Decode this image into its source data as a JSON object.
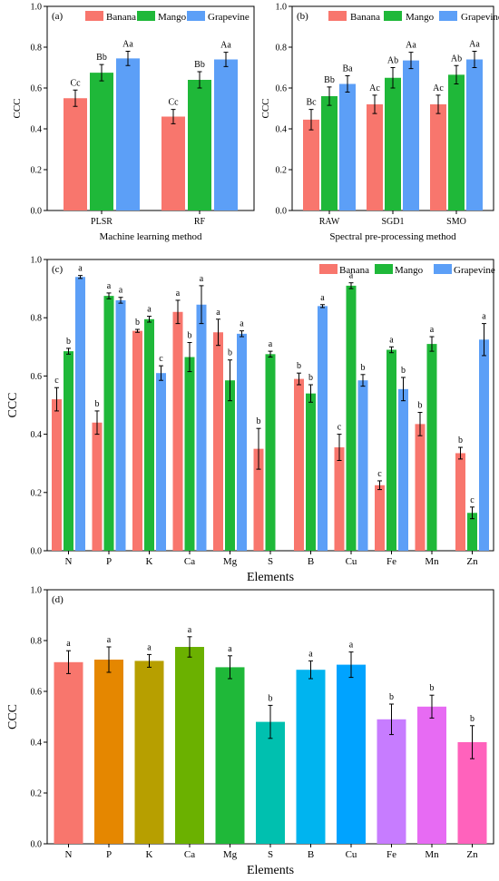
{
  "colors": {
    "Banana": "#f8766d",
    "Mango": "#1fb839",
    "Grapevine": "#5c9ff7"
  },
  "chart_data": [
    {
      "panel": "(a)",
      "type": "bar",
      "ylabel": "CCC",
      "xlabel": "Machine learning method",
      "ylim": [
        0,
        1
      ],
      "yticks": [
        "0.0",
        "0.2",
        "0.4",
        "0.6",
        "0.8",
        "1.0"
      ],
      "legend": "top",
      "categories": [
        "PLSR",
        "RF"
      ],
      "series": [
        {
          "name": "Banana",
          "values": [
            0.55,
            0.46
          ],
          "err": [
            0.04,
            0.035
          ],
          "labels": [
            "Cc",
            "Cc"
          ]
        },
        {
          "name": "Mango",
          "values": [
            0.675,
            0.64
          ],
          "err": [
            0.04,
            0.04
          ],
          "labels": [
            "Bb",
            "Bb"
          ]
        },
        {
          "name": "Grapevine",
          "values": [
            0.745,
            0.74
          ],
          "err": [
            0.035,
            0.035
          ],
          "labels": [
            "Aa",
            "Aa"
          ]
        }
      ]
    },
    {
      "panel": "(b)",
      "type": "bar",
      "ylabel": "CCC",
      "xlabel": "Spectral pre-processing method",
      "ylim": [
        0,
        1
      ],
      "yticks": [
        "0.0",
        "0.2",
        "0.4",
        "0.6",
        "0.8",
        "1.0"
      ],
      "legend": "top",
      "categories": [
        "RAW",
        "SGD1",
        "SMO"
      ],
      "series": [
        {
          "name": "Banana",
          "values": [
            0.445,
            0.52,
            0.52
          ],
          "err": [
            0.05,
            0.045,
            0.045
          ],
          "labels": [
            "Bc",
            "Ac",
            "Ac"
          ]
        },
        {
          "name": "Mango",
          "values": [
            0.56,
            0.65,
            0.665
          ],
          "err": [
            0.045,
            0.05,
            0.045
          ],
          "labels": [
            "Bb",
            "Ab",
            "Ab"
          ]
        },
        {
          "name": "Grapevine",
          "values": [
            0.62,
            0.735,
            0.74
          ],
          "err": [
            0.04,
            0.04,
            0.04
          ],
          "labels": [
            "Ba",
            "Aa",
            "Aa"
          ]
        }
      ]
    },
    {
      "panel": "(c)",
      "type": "bar",
      "ylabel": "CCC",
      "xlabel": "Elements",
      "ylim": [
        0,
        1
      ],
      "yticks": [
        "0.0",
        "0.2",
        "0.4",
        "0.6",
        "0.8",
        "1.0"
      ],
      "legend": "top-right",
      "categories": [
        "N",
        "P",
        "K",
        "Ca",
        "Mg",
        "S",
        "B",
        "Cu",
        "Fe",
        "Mn",
        "Zn"
      ],
      "series": [
        {
          "name": "Banana",
          "values": [
            0.52,
            0.44,
            0.755,
            0.82,
            0.75,
            0.35,
            0.59,
            0.355,
            0.225,
            0.435,
            0.335
          ],
          "err": [
            0.04,
            0.04,
            0.005,
            0.04,
            0.045,
            0.07,
            0.02,
            0.045,
            0.015,
            0.04,
            0.02
          ],
          "labels": [
            "c",
            "b",
            "b",
            "a",
            "a",
            "b",
            "b",
            "c",
            "c",
            "b",
            "b"
          ]
        },
        {
          "name": "Mango",
          "values": [
            0.685,
            0.875,
            0.795,
            0.665,
            0.585,
            0.675,
            0.54,
            0.91,
            0.69,
            0.71,
            0.13
          ],
          "err": [
            0.01,
            0.01,
            0.01,
            0.05,
            0.07,
            0.01,
            0.03,
            0.01,
            0.01,
            0.025,
            0.02
          ],
          "labels": [
            "b",
            "a",
            "a",
            "b",
            "b",
            "a",
            "b",
            "a",
            "a",
            "a",
            "c"
          ]
        },
        {
          "name": "Grapevine",
          "values": [
            0.94,
            0.86,
            0.61,
            0.845,
            0.745,
            null,
            0.84,
            0.585,
            0.555,
            null,
            0.725
          ],
          "err": [
            0.005,
            0.01,
            0.025,
            0.065,
            0.01,
            0,
            0.005,
            0.02,
            0.04,
            0,
            0.055
          ],
          "labels": [
            "a",
            "a",
            "c",
            "a",
            "a",
            "",
            "a",
            "b",
            "b",
            "",
            "a"
          ]
        }
      ]
    },
    {
      "panel": "(d)",
      "type": "bar",
      "ylabel": "CCC",
      "xlabel": "Elements",
      "ylim": [
        0,
        1
      ],
      "yticks": [
        "0.0",
        "0.2",
        "0.4",
        "0.6",
        "0.8",
        "1.0"
      ],
      "categories": [
        "N",
        "P",
        "K",
        "Ca",
        "Mg",
        "S",
        "B",
        "Cu",
        "Fe",
        "Mn",
        "Zn"
      ],
      "values": [
        0.715,
        0.725,
        0.72,
        0.775,
        0.695,
        0.48,
        0.685,
        0.705,
        0.49,
        0.54,
        0.4
      ],
      "err": [
        0.045,
        0.05,
        0.025,
        0.04,
        0.045,
        0.065,
        0.035,
        0.05,
        0.06,
        0.045,
        0.065
      ],
      "labels": [
        "a",
        "a",
        "a",
        "a",
        "a",
        "b",
        "a",
        "a",
        "b",
        "b",
        "b"
      ],
      "bar_colors": [
        "#f8766d",
        "#e58700",
        "#b79f00",
        "#6bb100",
        "#1fb839",
        "#00c0af",
        "#00b4ef",
        "#00a3ff",
        "#c77cff",
        "#e76bf3",
        "#ff62bc"
      ]
    }
  ]
}
